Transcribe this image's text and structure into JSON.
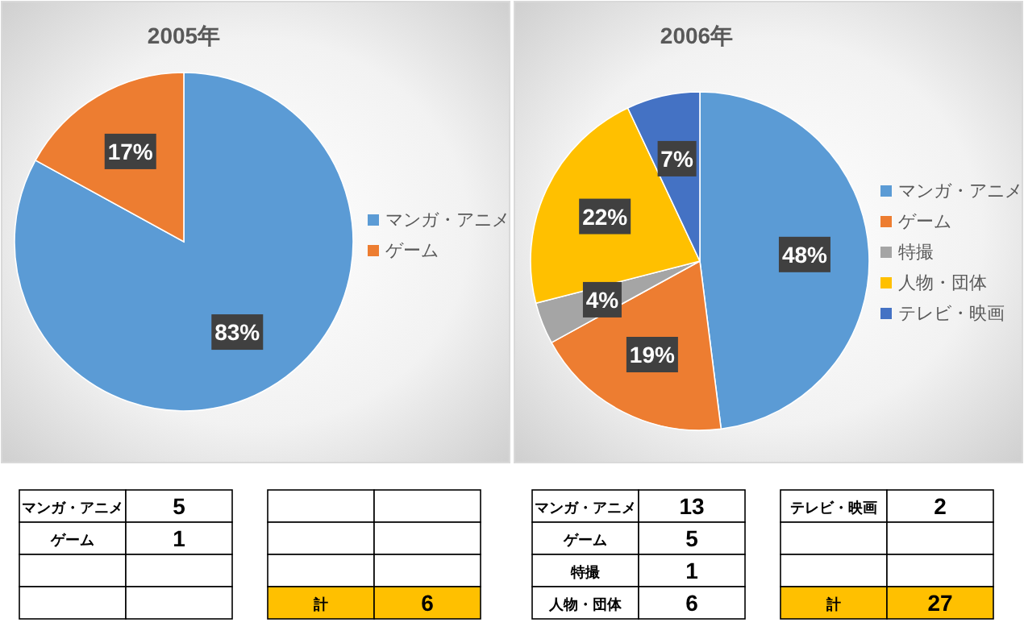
{
  "chart_data": [
    {
      "type": "pie",
      "title": "2005年",
      "categories": [
        "マンガ・アニメ",
        "ゲーム"
      ],
      "values": [
        83,
        17
      ],
      "colors": [
        "#5b9bd5",
        "#ed7d31"
      ],
      "value_labels": [
        "83%",
        "17%"
      ],
      "legend": "right",
      "annotations": [
        "マンガ・アニメ",
        "5",
        "ゲーム",
        "1",
        "計",
        "6"
      ]
    },
    {
      "type": "pie",
      "title": "2006年",
      "categories": [
        "マンガ・アニメ",
        "ゲーム",
        "特撮",
        "人物・団体",
        "テレビ・映画"
      ],
      "values": [
        48,
        19,
        4,
        22,
        7
      ],
      "colors": [
        "#5b9bd5",
        "#ed7d31",
        "#a5a5a5",
        "#ffc000",
        "#4472c4"
      ],
      "value_labels": [
        "48%",
        "19%",
        "4%",
        "22%",
        "7%"
      ],
      "legend": "right",
      "annotations": [
        "マンガ・アニメ",
        "13",
        "ゲーム",
        "5",
        "特撮",
        "1",
        "人物・団体",
        "6",
        "テレビ・映画",
        "2",
        "計",
        "27"
      ]
    }
  ]
}
